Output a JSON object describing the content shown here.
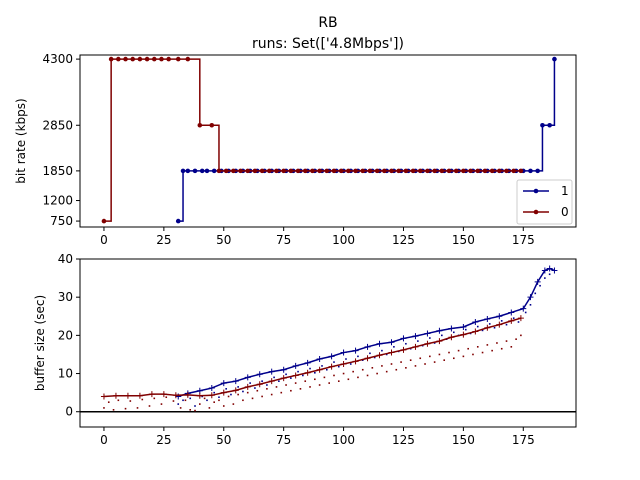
{
  "figure": {
    "title": "RB",
    "subtitle": "runs: Set(['4.8Mbps'])"
  },
  "chart_data": [
    {
      "type": "line",
      "style": "step",
      "xlim": [
        -10,
        197
      ],
      "ylim": [
        620,
        4390
      ],
      "xticks": [
        "0",
        "25",
        "50",
        "75",
        "100",
        "125",
        "150",
        "175"
      ],
      "yticks": [
        "750",
        "1200",
        "1850",
        "2850",
        "4300"
      ],
      "ytick_values": [
        750,
        1200,
        1850,
        2850,
        4300
      ],
      "xlabel": "",
      "ylabel": "bit rate (kbps)",
      "legend_position": "lower-right",
      "series": [
        {
          "name": "1",
          "color": "#00008b",
          "x": [
            31,
            33,
            35,
            38,
            41,
            43,
            46,
            49,
            52,
            55,
            58,
            61,
            64,
            67,
            70,
            73,
            76,
            79,
            82,
            85,
            88,
            91,
            94,
            97,
            100,
            103,
            106,
            109,
            112,
            115,
            118,
            121,
            124,
            127,
            130,
            133,
            136,
            139,
            142,
            145,
            148,
            151,
            154,
            157,
            160,
            163,
            166,
            169,
            172,
            175,
            178,
            181,
            183,
            186,
            188
          ],
          "y": [
            750,
            1850,
            1850,
            1850,
            1850,
            1850,
            1850,
            1850,
            1850,
            1850,
            1850,
            1850,
            1850,
            1850,
            1850,
            1850,
            1850,
            1850,
            1850,
            1850,
            1850,
            1850,
            1850,
            1850,
            1850,
            1850,
            1850,
            1850,
            1850,
            1850,
            1850,
            1850,
            1850,
            1850,
            1850,
            1850,
            1850,
            1850,
            1850,
            1850,
            1850,
            1850,
            1850,
            1850,
            1850,
            1850,
            1850,
            1850,
            1850,
            1850,
            1850,
            1850,
            2850,
            2850,
            4300
          ]
        },
        {
          "name": "0",
          "color": "#800000",
          "x": [
            0,
            3,
            6,
            9,
            12,
            15,
            18,
            21,
            24,
            27,
            31,
            35,
            40,
            45,
            48,
            51,
            54,
            57,
            60,
            63,
            66,
            69,
            72,
            75,
            78,
            81,
            84,
            87,
            90,
            93,
            96,
            99,
            102,
            105,
            108,
            111,
            114,
            117,
            120,
            123,
            126,
            129,
            132,
            135,
            138,
            141,
            144,
            147,
            150,
            153,
            156,
            159,
            162,
            165,
            168,
            171,
            174
          ],
          "y": [
            750,
            4300,
            4300,
            4300,
            4300,
            4300,
            4300,
            4300,
            4300,
            4300,
            4300,
            4300,
            2850,
            2850,
            1850,
            1850,
            1850,
            1850,
            1850,
            1850,
            1850,
            1850,
            1850,
            1850,
            1850,
            1850,
            1850,
            1850,
            1850,
            1850,
            1850,
            1850,
            1850,
            1850,
            1850,
            1850,
            1850,
            1850,
            1850,
            1850,
            1850,
            1850,
            1850,
            1850,
            1850,
            1850,
            1850,
            1850,
            1850,
            1850,
            1850,
            1850,
            1850,
            1850,
            1850,
            1850,
            1850
          ]
        }
      ]
    },
    {
      "type": "line",
      "xlim": [
        -10,
        197
      ],
      "ylim": [
        -4,
        40
      ],
      "xticks": [
        "0",
        "25",
        "50",
        "75",
        "100",
        "125",
        "150",
        "175"
      ],
      "yticks": [
        "0",
        "10",
        "20",
        "30",
        "40"
      ],
      "ytick_values": [
        0,
        10,
        20,
        30,
        40
      ],
      "xlabel": "",
      "ylabel": "buffer size (sec)",
      "hline": 0,
      "series": [
        {
          "name": "1",
          "color": "#00008b",
          "x": [
            31,
            35,
            40,
            45,
            50,
            55,
            60,
            65,
            70,
            75,
            80,
            85,
            90,
            95,
            100,
            105,
            110,
            115,
            120,
            125,
            130,
            135,
            140,
            145,
            150,
            155,
            160,
            165,
            170,
            175,
            178,
            181,
            184,
            186,
            188
          ],
          "y": [
            4,
            4.8,
            5.5,
            6.2,
            7.5,
            8,
            9,
            9.8,
            10.5,
            11,
            12,
            12.8,
            13.8,
            14.5,
            15.5,
            16,
            17,
            17.8,
            18.2,
            19.2,
            19.8,
            20.5,
            21.2,
            21.8,
            22.2,
            23.5,
            24.3,
            25,
            26,
            27,
            30,
            34,
            37,
            37.5,
            37
          ]
        },
        {
          "name": "0",
          "color": "#800000",
          "x": [
            0,
            5,
            10,
            15,
            20,
            25,
            30,
            35,
            40,
            45,
            50,
            55,
            60,
            65,
            70,
            75,
            80,
            85,
            90,
            95,
            100,
            105,
            110,
            115,
            120,
            125,
            130,
            135,
            140,
            145,
            150,
            155,
            160,
            165,
            170,
            174
          ],
          "y": [
            4,
            4.2,
            4.2,
            4.2,
            4.6,
            4.6,
            4.3,
            4.4,
            4.2,
            4.3,
            5,
            5.6,
            6.5,
            7.2,
            8,
            8.8,
            9.5,
            10.2,
            11,
            11.8,
            12.5,
            13.2,
            14,
            14.8,
            15.5,
            16.2,
            17,
            17.8,
            18.5,
            19.5,
            20.2,
            21,
            22,
            22.8,
            23.8,
            24.5
          ]
        }
      ],
      "scatter_series": [
        {
          "name": "1",
          "color": "#00008b",
          "x": [
            31,
            33,
            36,
            38,
            41,
            43,
            46,
            48,
            51,
            53,
            56,
            58,
            61,
            63,
            66,
            68,
            71,
            73,
            76,
            78,
            81,
            83,
            86,
            88,
            91,
            93,
            96,
            98,
            101,
            103,
            106,
            108,
            111,
            113,
            116,
            118,
            121,
            123,
            126,
            128,
            131,
            133,
            136,
            138,
            141,
            143,
            146,
            148,
            151,
            153,
            156,
            158,
            161,
            163,
            166,
            168,
            171,
            173,
            176,
            178,
            180,
            182,
            184,
            186
          ],
          "y": [
            2,
            3,
            3.5,
            1.5,
            4,
            3,
            5,
            3.8,
            6,
            4.5,
            6.5,
            5.3,
            7.5,
            6.2,
            8,
            7,
            9,
            8,
            9.8,
            8.8,
            10.5,
            9.5,
            11.3,
            10.2,
            12,
            11,
            13,
            11.8,
            13.8,
            12.5,
            14.5,
            13.5,
            15.3,
            14.2,
            16,
            15,
            17,
            15.8,
            17.8,
            16.5,
            18.5,
            17.3,
            19.3,
            18,
            20,
            19,
            20.8,
            20,
            21.5,
            20.5,
            22.3,
            21.3,
            23,
            22,
            23.8,
            22.8,
            24.5,
            23.5,
            26,
            28,
            31,
            33,
            35,
            36
          ]
        },
        {
          "name": "0",
          "color": "#800000",
          "x": [
            0,
            2,
            4,
            6,
            9,
            11,
            14,
            16,
            19,
            21,
            24,
            26,
            29,
            32,
            34,
            36,
            38,
            40,
            42,
            44,
            46,
            48,
            50,
            52,
            54,
            56,
            58,
            60,
            62,
            64,
            66,
            68,
            70,
            72,
            74,
            76,
            78,
            80,
            82,
            84,
            86,
            88,
            90,
            92,
            94,
            96,
            98,
            100,
            102,
            104,
            106,
            108,
            110,
            112,
            114,
            116,
            118,
            120,
            122,
            124,
            126,
            128,
            130,
            132,
            134,
            136,
            138,
            140,
            142,
            144,
            146,
            148,
            150,
            152,
            154,
            156,
            158,
            160,
            162,
            164,
            166,
            168,
            170,
            172,
            174
          ],
          "y": [
            1,
            2.5,
            0.5,
            3,
            0.8,
            2.8,
            1,
            3.2,
            1.5,
            3.5,
            2,
            3.8,
            2.8,
            1,
            3,
            0.5,
            0.3,
            2,
            3.5,
            1,
            2.5,
            3,
            1.5,
            4,
            2,
            4.5,
            3,
            5,
            3.5,
            5.5,
            4,
            6,
            4.5,
            6.5,
            5,
            7,
            5.5,
            7.5,
            6,
            8,
            6.5,
            8.5,
            7,
            9,
            7.5,
            9.5,
            8,
            10,
            8.5,
            10.5,
            9,
            11,
            9.5,
            11.5,
            10,
            12,
            10.5,
            12.5,
            11,
            13,
            11.5,
            13.5,
            12,
            14,
            12.5,
            14.5,
            13,
            15,
            13.5,
            15.5,
            14,
            16,
            14.5,
            16.5,
            15,
            17,
            15.5,
            17.5,
            16,
            18,
            16.5,
            18.5,
            17,
            19,
            20
          ]
        }
      ]
    }
  ]
}
